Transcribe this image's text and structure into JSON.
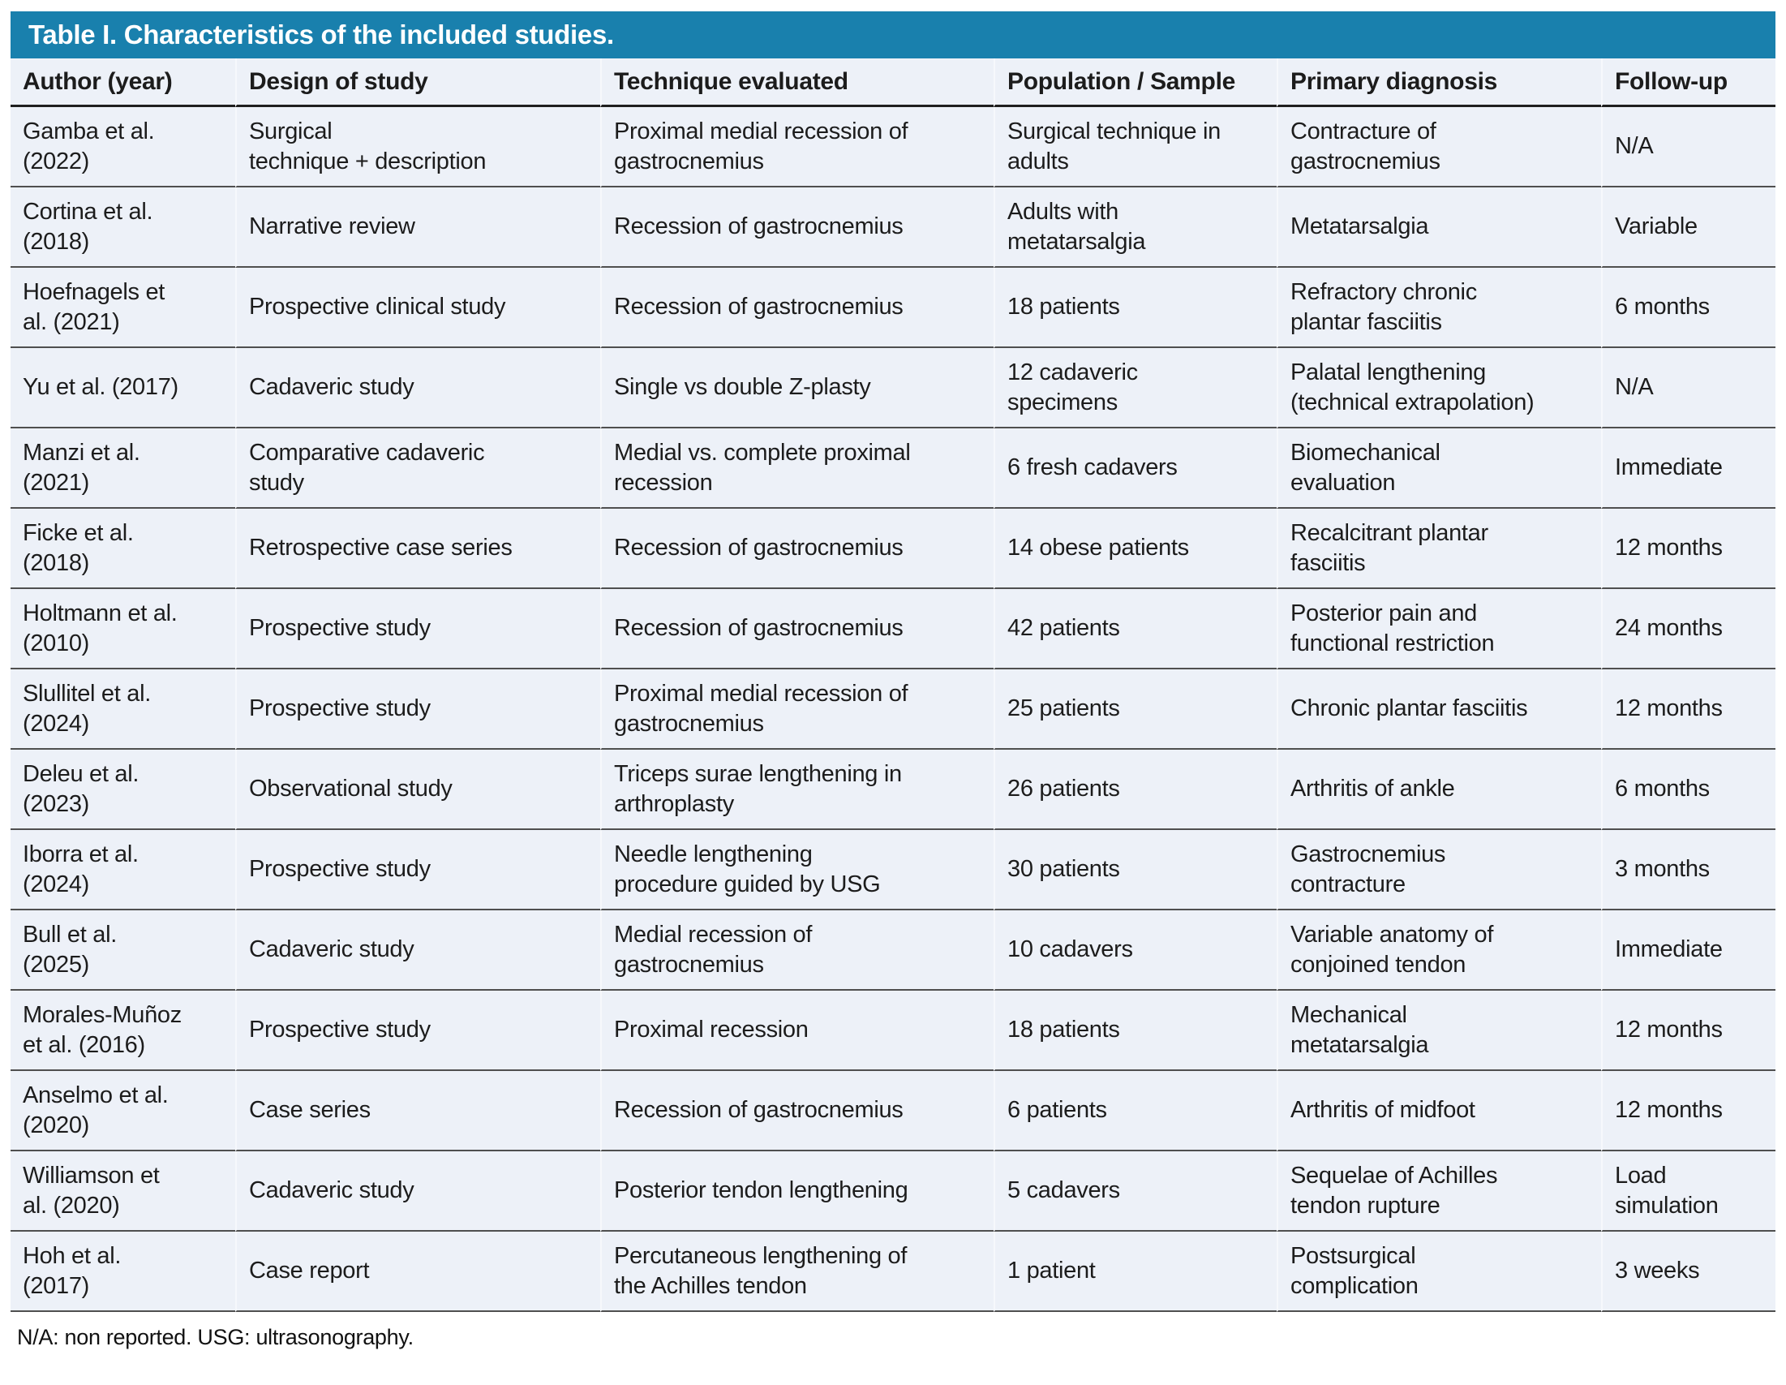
{
  "table": {
    "title": "Table I. Characteristics of the included studies.",
    "columns": [
      "Author (year)",
      "Design of study",
      "Technique evaluated",
      "Population / Sample",
      "Primary diagnosis",
      "Follow-up"
    ],
    "rows": [
      [
        "Gamba et al.\n(2022)",
        "Surgical\ntechnique + description",
        "Proximal medial recession of\ngastrocnemius",
        "Surgical technique in\nadults",
        "Contracture of\ngastrocnemius",
        "N/A"
      ],
      [
        "Cortina et al.\n(2018)",
        "Narrative review",
        "Recession of gastrocnemius",
        "Adults with\nmetatarsalgia",
        "Metatarsalgia",
        "Variable"
      ],
      [
        "Hoefnagels et\nal. (2021)",
        "Prospective clinical study",
        "Recession of gastrocnemius",
        "18 patients",
        "Refractory chronic\nplantar fasciitis",
        "6 months"
      ],
      [
        "Yu et al. (2017)",
        "Cadaveric study",
        "Single vs double Z-plasty",
        "12 cadaveric\nspecimens",
        "Palatal lengthening\n(technical extrapolation)",
        "N/A"
      ],
      [
        "Manzi et al.\n(2021)",
        "Comparative cadaveric\nstudy",
        "Medial vs. complete proximal\nrecession",
        "6 fresh cadavers",
        "Biomechanical\nevaluation",
        "Immediate"
      ],
      [
        "Ficke et al.\n(2018)",
        "Retrospective case series",
        "Recession of gastrocnemius",
        "14 obese patients",
        "Recalcitrant plantar\nfasciitis",
        "12 months"
      ],
      [
        "Holtmann et al.\n(2010)",
        "Prospective study",
        "Recession of gastrocnemius",
        "42 patients",
        "Posterior pain and\nfunctional restriction",
        "24 months"
      ],
      [
        "Slullitel et al.\n(2024)",
        "Prospective study",
        "Proximal medial recession of\ngastrocnemius",
        "25 patients",
        "Chronic plantar fasciitis",
        "12 months"
      ],
      [
        "Deleu et al.\n(2023)",
        "Observational study",
        "Triceps surae lengthening in\narthroplasty",
        "26 patients",
        "Arthritis of ankle",
        "6 months"
      ],
      [
        "Iborra et al.\n(2024)",
        "Prospective study",
        "Needle lengthening\nprocedure guided by USG",
        "30 patients",
        "Gastrocnemius\ncontracture",
        "3 months"
      ],
      [
        "Bull et al.\n(2025)",
        "Cadaveric study",
        "Medial recession of\ngastrocnemius",
        "10 cadavers",
        "Variable anatomy of\nconjoined tendon",
        "Immediate"
      ],
      [
        "Morales-Muñoz\net al. (2016)",
        "Prospective study",
        "Proximal recession",
        "18 patients",
        "Mechanical\nmetatarsalgia",
        "12 months"
      ],
      [
        "Anselmo et al.\n(2020)",
        "Case series",
        "Recession of gastrocnemius",
        "6 patients",
        "Arthritis of midfoot",
        "12 months"
      ],
      [
        "Williamson et\nal. (2020)",
        "Cadaveric study",
        "Posterior tendon lengthening",
        "5 cadavers",
        "Sequelae of Achilles\ntendon rupture",
        "Load\nsimulation"
      ],
      [
        "Hoh et al.\n(2017)",
        "Case report",
        "Percutaneous lengthening of\nthe Achilles tendon",
        "1 patient",
        "Postsurgical\ncomplication",
        "3 weeks"
      ]
    ],
    "footnote": "N/A: non reported. USG: ultrasonography."
  },
  "colors": {
    "title_bar": "#1980ad",
    "title_text": "#ffffff",
    "row_background": "#edf1f8",
    "body_text": "#1c1c1c",
    "row_separator": "#4f4f4f",
    "header_rule": "#1f1f1f"
  }
}
